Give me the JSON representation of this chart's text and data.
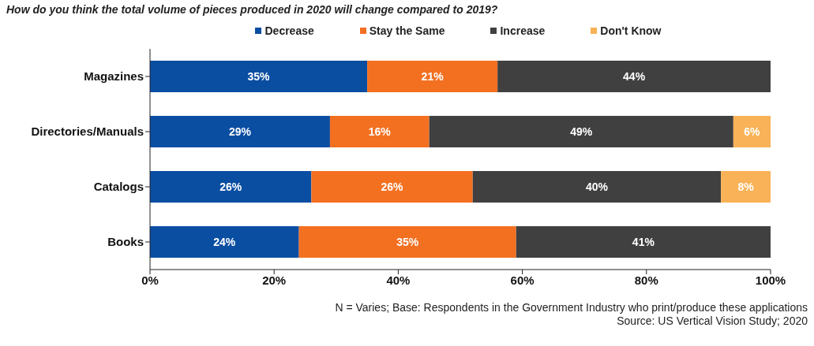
{
  "chart_data": {
    "type": "bar",
    "orientation": "horizontal",
    "stacked": true,
    "title": "How do you think the total volume of pieces produced in 2020 will change compared to 2019?",
    "categories": [
      "Magazines",
      "Directories/Manuals",
      "Catalogs",
      "Books"
    ],
    "series": [
      {
        "name": "Decrease",
        "color": "#0a4ea2",
        "values": [
          35,
          29,
          26,
          24
        ],
        "value_labels": [
          "35%",
          "29%",
          "26%",
          "24%"
        ]
      },
      {
        "name": "Stay the Same",
        "color": "#f37021",
        "values": [
          21,
          16,
          26,
          35
        ],
        "value_labels": [
          "21%",
          "16%",
          "26%",
          "35%"
        ]
      },
      {
        "name": "Increase",
        "color": "#404040",
        "values": [
          44,
          49,
          40,
          41
        ],
        "value_labels": [
          "44%",
          "49%",
          "40%",
          "41%"
        ]
      },
      {
        "name": "Don't Know",
        "color": "#f9b257",
        "values": [
          null,
          6,
          8,
          null
        ],
        "value_labels": [
          null,
          "6%",
          "8%",
          null
        ]
      }
    ],
    "xlim": [
      0,
      100
    ],
    "xticks": [
      {
        "value": 0,
        "label": "0%"
      },
      {
        "value": 20,
        "label": "20%"
      },
      {
        "value": 40,
        "label": "40%"
      },
      {
        "value": 60,
        "label": "60%"
      },
      {
        "value": 80,
        "label": "80%"
      },
      {
        "value": 100,
        "label": "100%"
      }
    ],
    "legend": "top",
    "grid": false,
    "annotations": [
      "N = Varies; Base: Respondents in the Government Industry who print/produce these applications",
      "Source: US Vertical Vision Study; 2020"
    ]
  }
}
